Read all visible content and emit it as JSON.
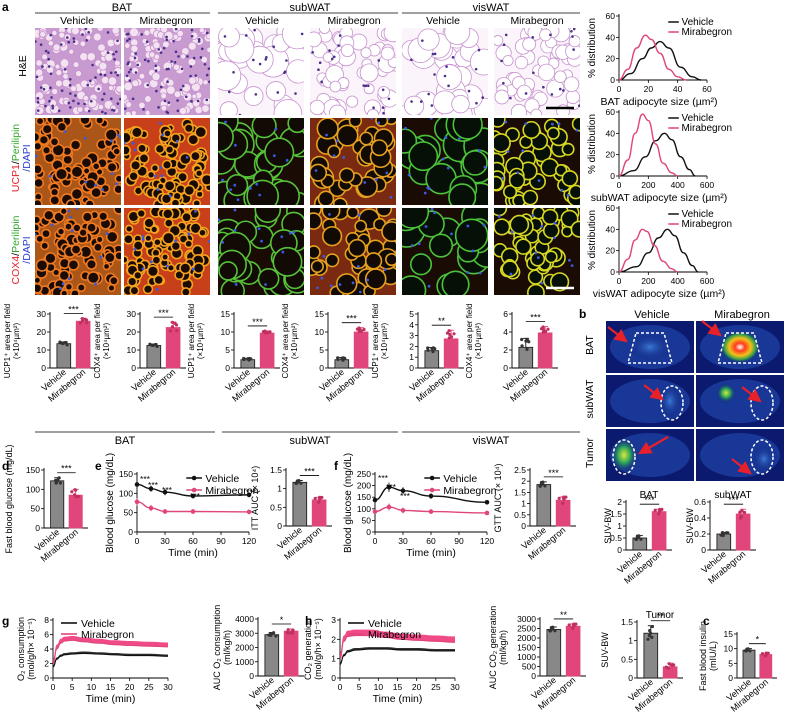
{
  "colors": {
    "vehicle": "#111111",
    "mirabegron": "#e0457b",
    "he_bg": "#f3e6f0",
    "he_cell": "#8a5fb4",
    "if_bg": "#1a0b05",
    "if_red": "#e03b1e",
    "if_orange": "#f5a21f",
    "if_green": "#3fbe3a",
    "pet_bg": "#0b1a6e"
  },
  "icons": {
    "significance_bracket": "significance-bracket-icon",
    "scale_bar": "scale-bar-icon",
    "red_arrow": "red-arrow-icon",
    "roi_ellipse": "roi-ellipse-icon"
  },
  "panel_letters": [
    "a",
    "b",
    "c",
    "d",
    "e",
    "f",
    "g",
    "h"
  ],
  "panel_a": {
    "tissues": [
      "BAT",
      "subWAT",
      "visWAT"
    ],
    "conditions": [
      "Vehicle",
      "Mirabegron",
      "Vehicle",
      "Mirabegron",
      "Vehicle",
      "Mirabegron"
    ],
    "row_labels": [
      {
        "parts": [
          "H&E"
        ]
      },
      {
        "parts": [
          "UCP1",
          "/",
          "Perilipin",
          "/DAPI"
        ]
      },
      {
        "parts": [
          "COX4",
          "/",
          "Perilipin",
          "/DAPI"
        ]
      }
    ],
    "group_labels": [
      "BAT",
      "subWAT",
      "visWAT"
    ]
  },
  "panel_b": {
    "columns": [
      "Vehicle",
      "Mirabegron"
    ],
    "rows": [
      "BAT",
      "subWAT",
      "Tumor"
    ]
  },
  "chart_data": [
    {
      "id": "size-bat",
      "type": "line",
      "xlabel": "BAT adipocyte size (µm²)",
      "ylabel": "% distribution",
      "xlim": [
        0,
        60
      ],
      "ylim": [
        0,
        60
      ],
      "xticks": [
        0,
        20,
        40,
        60
      ],
      "yticks": [
        0,
        20,
        40,
        60
      ],
      "legend": "top-right",
      "series": [
        {
          "name": "Vehicle",
          "x": [
            0,
            8,
            16,
            22,
            28,
            34,
            42,
            50,
            56
          ],
          "y": [
            0,
            6,
            20,
            30,
            36,
            30,
            12,
            3,
            0
          ]
        },
        {
          "name": "Mirabegron",
          "x": [
            0,
            6,
            12,
            18,
            22,
            28,
            34,
            40,
            46
          ],
          "y": [
            0,
            10,
            30,
            42,
            38,
            25,
            10,
            3,
            0
          ]
        }
      ]
    },
    {
      "id": "size-subwat",
      "type": "line",
      "xlabel": "subWAT adipocyte size (µm²)",
      "ylabel": "% distribution",
      "xlim": [
        0,
        600
      ],
      "ylim": [
        0,
        60
      ],
      "xticks": [
        0,
        200,
        400,
        600
      ],
      "yticks": [
        0,
        20,
        40,
        60
      ],
      "legend": "top-right",
      "series": [
        {
          "name": "Vehicle",
          "x": [
            0,
            100,
            180,
            250,
            310,
            360,
            420,
            480,
            520
          ],
          "y": [
            0,
            5,
            18,
            33,
            40,
            34,
            18,
            6,
            0
          ]
        },
        {
          "name": "Mirabegron",
          "x": [
            0,
            60,
            110,
            160,
            200,
            250,
            300,
            360,
            400
          ],
          "y": [
            0,
            15,
            40,
            58,
            52,
            30,
            12,
            3,
            0
          ]
        }
      ]
    },
    {
      "id": "size-viswat",
      "type": "line",
      "xlabel": "visWAT adipocyte size (µm²)",
      "ylabel": "% distribution",
      "xlim": [
        0,
        600
      ],
      "ylim": [
        0,
        60
      ],
      "xticks": [
        0,
        200,
        400,
        600
      ],
      "yticks": [
        0,
        20,
        40,
        60
      ],
      "legend": "top-right",
      "series": [
        {
          "name": "Vehicle",
          "x": [
            0,
            120,
            200,
            270,
            330,
            380,
            440,
            500,
            540
          ],
          "y": [
            0,
            5,
            18,
            32,
            40,
            34,
            18,
            6,
            0
          ]
        },
        {
          "name": "Mirabegron",
          "x": [
            0,
            60,
            110,
            160,
            190,
            240,
            300,
            360,
            400
          ],
          "y": [
            0,
            12,
            30,
            40,
            38,
            25,
            10,
            3,
            0
          ]
        }
      ]
    },
    {
      "id": "bar-ucp1-bat",
      "type": "bar",
      "ylabel": "UCP1⁺ area per field",
      "ylabel2": "(×10⁴µm²)",
      "categories": [
        "Vehicle",
        "Mirabegron"
      ],
      "values": [
        13.5,
        26
      ],
      "errors": [
        1,
        1.5
      ],
      "ylim": [
        0,
        30
      ],
      "yticks": [
        0,
        10,
        20,
        30
      ],
      "sig": "***"
    },
    {
      "id": "bar-cox4-bat",
      "type": "bar",
      "ylabel": "COX4⁺ area per field",
      "ylabel2": "(×10⁴µm²)",
      "categories": [
        "Vehicle",
        "Mirabegron"
      ],
      "values": [
        12.5,
        22.5
      ],
      "errors": [
        0.8,
        3
      ],
      "ylim": [
        0,
        30
      ],
      "yticks": [
        0,
        10,
        20,
        30
      ],
      "sig": "***"
    },
    {
      "id": "bar-ucp1-subwat",
      "type": "bar",
      "ylabel": "UCP1⁺ area per field",
      "ylabel2": "(×10⁴µm²)",
      "categories": [
        "Vehicle",
        "Mirabegron"
      ],
      "values": [
        2.3,
        9.7
      ],
      "errors": [
        0.4,
        0.6
      ],
      "ylim": [
        0,
        15
      ],
      "yticks": [
        0,
        5,
        10,
        15
      ],
      "sig": "***"
    },
    {
      "id": "bar-cox4-subwat",
      "type": "bar",
      "ylabel": "COX4⁺ area per field",
      "ylabel2": "(×10⁴µm²)",
      "categories": [
        "Vehicle",
        "Mirabegron"
      ],
      "values": [
        2.3,
        10
      ],
      "errors": [
        0.6,
        1.2
      ],
      "ylim": [
        0,
        15
      ],
      "yticks": [
        0,
        5,
        10,
        15
      ],
      "sig": "***"
    },
    {
      "id": "bar-ucp1-viswat",
      "type": "bar",
      "ylabel": "UCP1⁺ area per field",
      "ylabel2": "(×10⁴µm²)",
      "categories": [
        "Vehicle",
        "Mirabegron"
      ],
      "values": [
        1.6,
        2.7
      ],
      "errors": [
        0.3,
        0.8
      ],
      "ylim": [
        0,
        5
      ],
      "yticks": [
        0,
        1,
        2,
        3,
        4,
        5
      ],
      "sig": "**"
    },
    {
      "id": "bar-cox4-viswat",
      "type": "bar",
      "ylabel": "COX4⁺ area per field",
      "ylabel2": "(×10⁴µm²)",
      "categories": [
        "Vehicle",
        "Mirabegron"
      ],
      "values": [
        2.3,
        3.9
      ],
      "errors": [
        1,
        0.7
      ],
      "ylim": [
        0,
        6
      ],
      "yticks": [
        0,
        2,
        4,
        6
      ],
      "sig": "***"
    },
    {
      "id": "bar-suv-bat",
      "type": "bar",
      "ylabel": "SUV-BW",
      "title": "BAT",
      "categories": [
        "Vehicle",
        "Mirabegron"
      ],
      "values": [
        0.5,
        1.6
      ],
      "errors": [
        0.1,
        0.1
      ],
      "ylim": [
        0,
        2
      ],
      "yticks": [
        0,
        0.5,
        1,
        1.5,
        2
      ],
      "sig": "***"
    },
    {
      "id": "bar-suv-subwat",
      "type": "bar",
      "ylabel": "SUV-BW",
      "title": "subWAT",
      "categories": [
        "Vehicle",
        "Mirabegron"
      ],
      "values": [
        0.2,
        0.45
      ],
      "errors": [
        0.02,
        0.06
      ],
      "ylim": [
        0,
        0.6
      ],
      "yticks": [
        0,
        0.2,
        0.4,
        0.6
      ],
      "sig": "***"
    },
    {
      "id": "bar-fbg",
      "type": "bar",
      "ylabel": "Fast blood glucose (mg/dL)",
      "categories": [
        "Vehicle",
        "Mirabegron"
      ],
      "values": [
        122,
        85
      ],
      "errors": [
        8,
        15
      ],
      "ylim": [
        0,
        150
      ],
      "yticks": [
        0,
        50,
        100,
        150
      ],
      "sig": "***"
    },
    {
      "id": "line-itt",
      "type": "line",
      "xlabel": "Time (min)",
      "ylabel": "Blood glucose (mg/dL)",
      "xlim": [
        0,
        120
      ],
      "ylim": [
        0,
        150
      ],
      "xticks": [
        0,
        30,
        60,
        90,
        120
      ],
      "yticks": [
        0,
        50,
        100,
        150
      ],
      "legend": "top-right",
      "series": [
        {
          "name": "Vehicle",
          "x": [
            0,
            15,
            30,
            60,
            120
          ],
          "y": [
            123,
            112,
            103,
            93,
            96
          ],
          "err": [
            6,
            8,
            8,
            6,
            6
          ]
        },
        {
          "name": "Mirabegron",
          "x": [
            0,
            15,
            30,
            60,
            120
          ],
          "y": [
            78,
            62,
            53,
            53,
            52
          ],
          "err": [
            10,
            8,
            6,
            6,
            6
          ]
        }
      ],
      "annotations": [
        "***",
        "***",
        "***",
        "***",
        "***"
      ]
    },
    {
      "id": "bar-itt-auc",
      "type": "bar",
      "ylabel": "ITT AUC (× 10⁴)",
      "categories": [
        "Vehicle",
        "Mirabegron"
      ],
      "values": [
        1.17,
        0.7
      ],
      "errors": [
        0.05,
        0.07
      ],
      "ylim": [
        0,
        1.5
      ],
      "yticks": [
        0,
        0.5,
        1,
        1.5
      ],
      "sig": "***"
    },
    {
      "id": "line-gtt",
      "type": "line",
      "xlabel": "Time (min)",
      "ylabel": "Blood glucose (mg/dL)",
      "xlim": [
        0,
        120
      ],
      "ylim": [
        0,
        250
      ],
      "xticks": [
        0,
        30,
        60,
        90,
        120
      ],
      "yticks": [
        0,
        50,
        100,
        150,
        200,
        250
      ],
      "legend": "top-right",
      "series": [
        {
          "name": "Vehicle",
          "x": [
            0,
            15,
            30,
            60,
            120
          ],
          "y": [
            138,
            193,
            178,
            155,
            128
          ],
          "err": [
            8,
            20,
            15,
            12,
            8
          ]
        },
        {
          "name": "Mirabegron",
          "x": [
            0,
            15,
            30,
            60,
            120
          ],
          "y": [
            88,
            108,
            93,
            88,
            82
          ],
          "err": [
            10,
            15,
            12,
            10,
            8
          ]
        }
      ],
      "annotations": [
        "***",
        "***",
        "***"
      ]
    },
    {
      "id": "bar-gtt-auc",
      "type": "bar",
      "ylabel": "GTT AUC (× 10⁴)",
      "categories": [
        "Vehicle",
        "Mirabegron"
      ],
      "values": [
        1.85,
        1.15
      ],
      "errors": [
        0.12,
        0.15
      ],
      "ylim": [
        0,
        2.5
      ],
      "yticks": [
        0,
        0.5,
        1,
        1.5,
        2,
        2.5
      ],
      "sig": "***"
    },
    {
      "id": "line-o2",
      "type": "area",
      "xlabel": "Time (min)",
      "ylabel": "O₂ consumption",
      "ylabel2": "(mol/g/h× 10⁻⁵)",
      "xlim": [
        0,
        30
      ],
      "ylim": [
        0,
        8
      ],
      "xticks": [
        0,
        5,
        10,
        15,
        20,
        25,
        30
      ],
      "yticks": [
        0,
        2,
        4,
        6,
        8
      ],
      "legend": "top-left",
      "series": [
        {
          "name": "Vehicle",
          "x": [
            0,
            1,
            2,
            3,
            5,
            8,
            12,
            16,
            20,
            25,
            30
          ],
          "y": [
            1.5,
            2.6,
            3.0,
            3.2,
            3.3,
            3.4,
            3.3,
            3.2,
            3.1,
            3.1,
            3.0
          ],
          "err": 0.25
        },
        {
          "name": "Mirabegron",
          "x": [
            0,
            1,
            2,
            3,
            5,
            8,
            12,
            16,
            20,
            25,
            30
          ],
          "y": [
            2.0,
            4.0,
            4.8,
            5.1,
            5.2,
            5.0,
            4.8,
            4.6,
            4.5,
            4.4,
            4.3
          ],
          "err": 0.6
        }
      ]
    },
    {
      "id": "bar-auc-o2",
      "type": "bar",
      "ylabel": "AUC O₂ consumption",
      "ylabel2": "(ml/kg/h)",
      "categories": [
        "Vehicle",
        "Mirabegron"
      ],
      "values": [
        2900,
        3150
      ],
      "errors": [
        150,
        150
      ],
      "ylim": [
        0,
        4000
      ],
      "yticks": [
        0,
        1000,
        2000,
        3000,
        4000
      ],
      "sig": "*"
    },
    {
      "id": "line-co2",
      "type": "area",
      "xlabel": "Time (min)",
      "ylabel": "CO₂ generation",
      "ylabel2": "(mol/g/h× 10⁻⁵)",
      "xlim": [
        0,
        30
      ],
      "ylim": [
        0,
        3
      ],
      "xticks": [
        0,
        5,
        10,
        15,
        20,
        25,
        30
      ],
      "yticks": [
        0,
        1,
        2,
        3
      ],
      "legend": "top-left",
      "series": [
        {
          "name": "Vehicle",
          "x": [
            0,
            1,
            2,
            4,
            8,
            12,
            16,
            20,
            25,
            30
          ],
          "y": [
            0.7,
            1.15,
            1.35,
            1.45,
            1.5,
            1.5,
            1.45,
            1.45,
            1.4,
            1.4
          ],
          "err": 0.1
        },
        {
          "name": "Mirabegron",
          "x": [
            0,
            1,
            2,
            4,
            8,
            12,
            16,
            20,
            25,
            30
          ],
          "y": [
            1.0,
            1.9,
            2.15,
            2.2,
            2.2,
            2.1,
            2.0,
            1.95,
            1.9,
            1.85
          ],
          "err": 0.3
        }
      ]
    },
    {
      "id": "bar-auc-co2",
      "type": "bar",
      "ylabel": "AUC CO₂ generation",
      "ylabel2": "(ml/kg/h)",
      "categories": [
        "Vehicle",
        "Mirabegron"
      ],
      "values": [
        2450,
        2620
      ],
      "errors": [
        130,
        120
      ],
      "ylim": [
        0,
        3000
      ],
      "yticks": [
        0,
        500,
        1000,
        1500,
        2000,
        2500,
        3000
      ],
      "sig": "**"
    },
    {
      "id": "bar-suv-tumor",
      "type": "bar",
      "ylabel": "SUV-BW",
      "title": "Tumor",
      "categories": [
        "Vehicle",
        "Mirabegron"
      ],
      "values": [
        1.2,
        0.3
      ],
      "errors": [
        0.2,
        0.1
      ],
      "ylim": [
        0,
        1.5
      ],
      "yticks": [
        0,
        0.5,
        1,
        1.5
      ],
      "sig": "**"
    },
    {
      "id": "bar-insulin",
      "type": "bar",
      "ylabel": "Fast blood insulin",
      "ylabel2": "(mIU/L)",
      "categories": [
        "Vehicle",
        "Mirabegron"
      ],
      "values": [
        9.5,
        8
      ],
      "errors": [
        0.5,
        0.5
      ],
      "ylim": [
        0,
        15
      ],
      "yticks": [
        0,
        5,
        10,
        15
      ],
      "sig": "*"
    }
  ]
}
